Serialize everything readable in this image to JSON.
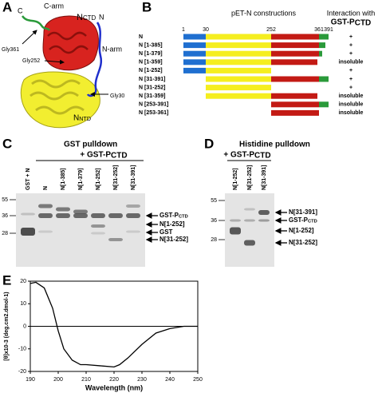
{
  "panel_a": {
    "label": "A",
    "c_term": "C",
    "c_arm": "C-arm",
    "n_ctd": {
      "main": "N",
      "sub": "CTD"
    },
    "n_term": "N",
    "n_arm": "N-arm",
    "gly361": "Gly361",
    "gly252": "Gly252",
    "gly30": "Gly30",
    "n_ntd": {
      "main": "N",
      "sub": "NTD"
    }
  },
  "panel_b": {
    "label": "B",
    "title": "pET-N constructions",
    "interaction_title": "Interaction with",
    "interaction_partner": {
      "main": "GST-P",
      "sub": "CTD"
    },
    "positions": [
      1,
      30,
      252,
      361,
      391
    ],
    "rows": [
      {
        "name": "N",
        "interaction": "+"
      },
      {
        "name": "N [1-385]",
        "interaction": "+"
      },
      {
        "name": "N [1-379]",
        "interaction": "+"
      },
      {
        "name": "N [1-359]",
        "interaction": "insoluble"
      },
      {
        "name": "N [1-252]",
        "interaction": "+"
      },
      {
        "name": "N [31-391]",
        "interaction": "+"
      },
      {
        "name": "N [31-252]",
        "interaction": "+"
      },
      {
        "name": "N [31-359]",
        "interaction": "insoluble"
      },
      {
        "name": "N [253-391]",
        "interaction": "insoluble"
      },
      {
        "name": "N [253-361]",
        "interaction": "insoluble"
      }
    ]
  },
  "panel_c": {
    "label": "C",
    "title": "GST pulldown",
    "treatment": {
      "main": "+ GST-P",
      "sub": "CTD"
    },
    "lanes": [
      "GST + N",
      "N",
      "N[1-385]",
      "N[1-379]",
      "N[1-252]",
      "N[31-252]",
      "N[31-391]"
    ],
    "markers": [
      55,
      36,
      28
    ],
    "bands": [
      {
        "main": "GST-P",
        "sub": "CTD"
      },
      {
        "main": "N[1-252]"
      },
      {
        "main": "GST"
      },
      {
        "main": "N[31-252]"
      }
    ]
  },
  "panel_d": {
    "label": "D",
    "title": "Histidine pulldown",
    "treatment": {
      "main": "+ GST-P",
      "sub": "CTD"
    },
    "lanes": [
      "N[1-252]",
      "N[31-252]",
      "N[31-391]"
    ],
    "markers": [
      55,
      36,
      28
    ],
    "bands": [
      {
        "main": "N[31-391]"
      },
      {
        "main": "GST-P",
        "sub": "CTD"
      },
      {
        "main": "N[1-252]"
      },
      {
        "main": "N[31-252]"
      }
    ]
  },
  "chart_data": {
    "type": "line",
    "panel_label": "E",
    "x_label": "Wavelength (nm)",
    "y_label": "[θ]x10-3 (deg.cm2.dmol-1)",
    "x": [
      190,
      192,
      195,
      198,
      200,
      202,
      205,
      208,
      210,
      215,
      220,
      222,
      225,
      230,
      235,
      240,
      245,
      250
    ],
    "series": [
      {
        "color": "#000000",
        "values": [
          19,
          19.5,
          17,
          8,
          -2,
          -10,
          -15,
          -17,
          -17,
          -17.5,
          -18,
          -17,
          -14,
          -8,
          -3,
          -1,
          0,
          0
        ]
      }
    ],
    "xlim": [
      190,
      250
    ],
    "ylim": [
      -20,
      20
    ],
    "xticks": [
      190,
      200,
      210,
      220,
      230,
      240,
      250
    ],
    "yticks": [
      -20,
      -10,
      0,
      10,
      20
    ]
  }
}
